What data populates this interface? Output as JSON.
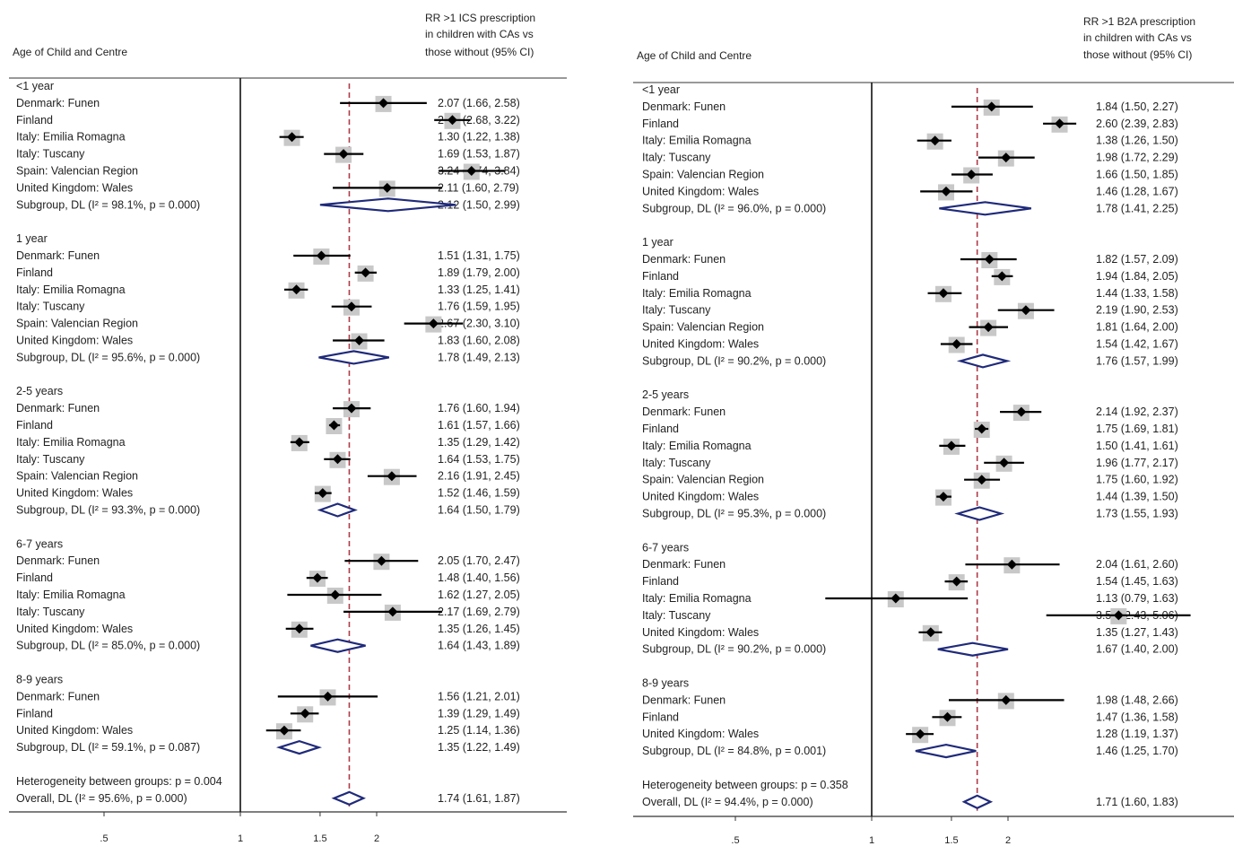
{
  "chart_data": [
    {
      "type": "forest",
      "header_left": "Age of Child and Centre",
      "header_right": [
        "RR >1 ICS prescription",
        "in children with CAs vs",
        "those without (95% CI)"
      ],
      "x_scale": "log",
      "x_ticks": [
        ".5",
        "1",
        "1.5",
        "2"
      ],
      "x_tick_values": [
        0.5,
        1,
        1.5,
        2
      ],
      "reference_line": 1.74,
      "groups": [
        {
          "label": "<1 year",
          "rows": [
            {
              "label": "Denmark: Funen",
              "est": 2.07,
              "lo": 1.66,
              "hi": 2.58,
              "text": "2.07 (1.66, 2.58)"
            },
            {
              "label": "Finland",
              "est": 2.94,
              "lo": 2.68,
              "hi": 3.22,
              "text": "2.94 (2.68, 3.22)"
            },
            {
              "label": "Italy: Emilia Romagna",
              "est": 1.3,
              "lo": 1.22,
              "hi": 1.38,
              "text": "1.30 (1.22, 1.38)"
            },
            {
              "label": "Italy: Tuscany",
              "est": 1.69,
              "lo": 1.53,
              "hi": 1.87,
              "text": "1.69 (1.53, 1.87)"
            },
            {
              "label": "Spain: Valencian Region",
              "est": 3.24,
              "lo": 2.74,
              "hi": 3.84,
              "text": "3.24 (2.74, 3.84)"
            },
            {
              "label": "United Kingdom: Wales",
              "est": 2.11,
              "lo": 1.6,
              "hi": 2.79,
              "text": "2.11 (1.60, 2.79)"
            }
          ],
          "subgroup": {
            "label": "Subgroup, DL (I² = 98.1%, p = 0.000)",
            "est": 2.12,
            "lo": 1.5,
            "hi": 2.99,
            "text": "2.12 (1.50, 2.99)"
          }
        },
        {
          "label": "1 year",
          "rows": [
            {
              "label": "Denmark: Funen",
              "est": 1.51,
              "lo": 1.31,
              "hi": 1.75,
              "text": "1.51 (1.31, 1.75)"
            },
            {
              "label": "Finland",
              "est": 1.89,
              "lo": 1.79,
              "hi": 2.0,
              "text": "1.89 (1.79, 2.00)"
            },
            {
              "label": "Italy: Emilia Romagna",
              "est": 1.33,
              "lo": 1.25,
              "hi": 1.41,
              "text": "1.33 (1.25, 1.41)"
            },
            {
              "label": "Italy: Tuscany",
              "est": 1.76,
              "lo": 1.59,
              "hi": 1.95,
              "text": "1.76 (1.59, 1.95)"
            },
            {
              "label": "Spain: Valencian Region",
              "est": 2.67,
              "lo": 2.3,
              "hi": 3.1,
              "text": "2.67 (2.30, 3.10)"
            },
            {
              "label": "United Kingdom: Wales",
              "est": 1.83,
              "lo": 1.6,
              "hi": 2.08,
              "text": "1.83 (1.60, 2.08)"
            }
          ],
          "subgroup": {
            "label": "Subgroup, DL (I² = 95.6%, p = 0.000)",
            "est": 1.78,
            "lo": 1.49,
            "hi": 2.13,
            "text": "1.78 (1.49, 2.13)"
          }
        },
        {
          "label": "2-5 years",
          "rows": [
            {
              "label": "Denmark: Funen",
              "est": 1.76,
              "lo": 1.6,
              "hi": 1.94,
              "text": "1.76 (1.60, 1.94)"
            },
            {
              "label": "Finland",
              "est": 1.61,
              "lo": 1.57,
              "hi": 1.66,
              "text": "1.61 (1.57, 1.66)"
            },
            {
              "label": "Italy: Emilia Romagna",
              "est": 1.35,
              "lo": 1.29,
              "hi": 1.42,
              "text": "1.35 (1.29, 1.42)"
            },
            {
              "label": "Italy: Tuscany",
              "est": 1.64,
              "lo": 1.53,
              "hi": 1.75,
              "text": "1.64 (1.53, 1.75)"
            },
            {
              "label": "Spain: Valencian Region",
              "est": 2.16,
              "lo": 1.91,
              "hi": 2.45,
              "text": "2.16 (1.91, 2.45)"
            },
            {
              "label": "United Kingdom: Wales",
              "est": 1.52,
              "lo": 1.46,
              "hi": 1.59,
              "text": "1.52 (1.46, 1.59)"
            }
          ],
          "subgroup": {
            "label": "Subgroup, DL (I² = 93.3%, p = 0.000)",
            "est": 1.64,
            "lo": 1.5,
            "hi": 1.79,
            "text": "1.64 (1.50, 1.79)"
          }
        },
        {
          "label": "6-7 years",
          "rows": [
            {
              "label": "Denmark: Funen",
              "est": 2.05,
              "lo": 1.7,
              "hi": 2.47,
              "text": "2.05 (1.70, 2.47)"
            },
            {
              "label": "Finland",
              "est": 1.48,
              "lo": 1.4,
              "hi": 1.56,
              "text": "1.48 (1.40, 1.56)"
            },
            {
              "label": "Italy: Emilia Romagna",
              "est": 1.62,
              "lo": 1.27,
              "hi": 2.05,
              "text": "1.62 (1.27, 2.05)"
            },
            {
              "label": "Italy: Tuscany",
              "est": 2.17,
              "lo": 1.69,
              "hi": 2.79,
              "text": "2.17 (1.69, 2.79)"
            },
            {
              "label": "United Kingdom: Wales",
              "est": 1.35,
              "lo": 1.26,
              "hi": 1.45,
              "text": "1.35 (1.26, 1.45)"
            }
          ],
          "subgroup": {
            "label": "Subgroup, DL (I² = 85.0%, p = 0.000)",
            "est": 1.64,
            "lo": 1.43,
            "hi": 1.89,
            "text": "1.64 (1.43, 1.89)"
          }
        },
        {
          "label": "8-9 years",
          "rows": [
            {
              "label": "Denmark: Funen",
              "est": 1.56,
              "lo": 1.21,
              "hi": 2.01,
              "text": "1.56 (1.21, 2.01)"
            },
            {
              "label": "Finland",
              "est": 1.39,
              "lo": 1.29,
              "hi": 1.49,
              "text": "1.39 (1.29, 1.49)"
            },
            {
              "label": "United Kingdom: Wales",
              "est": 1.25,
              "lo": 1.14,
              "hi": 1.36,
              "text": "1.25 (1.14, 1.36)"
            }
          ],
          "subgroup": {
            "label": "Subgroup, DL (I² = 59.1%, p = 0.087)",
            "est": 1.35,
            "lo": 1.22,
            "hi": 1.49,
            "text": "1.35 (1.22, 1.49)"
          }
        }
      ],
      "heterogeneity": "Heterogeneity between groups: p = 0.004",
      "overall": {
        "label": "Overall, DL (I² = 95.6%, p = 0.000)",
        "est": 1.74,
        "lo": 1.61,
        "hi": 1.87,
        "text": "1.74 (1.61, 1.87)"
      }
    },
    {
      "type": "forest",
      "header_left": "Age of Child and Centre",
      "header_right": [
        "RR >1 B2A prescription",
        "in children with CAs vs",
        "those without (95% CI)"
      ],
      "x_scale": "log",
      "x_ticks": [
        ".5",
        "1",
        "1.5",
        "2"
      ],
      "x_tick_values": [
        0.5,
        1,
        1.5,
        2
      ],
      "reference_line": 1.71,
      "groups": [
        {
          "label": "<1 year",
          "rows": [
            {
              "label": "Denmark: Funen",
              "est": 1.84,
              "lo": 1.5,
              "hi": 2.27,
              "text": "1.84 (1.50, 2.27)"
            },
            {
              "label": "Finland",
              "est": 2.6,
              "lo": 2.39,
              "hi": 2.83,
              "text": "2.60 (2.39, 2.83)"
            },
            {
              "label": "Italy: Emilia Romagna",
              "est": 1.38,
              "lo": 1.26,
              "hi": 1.5,
              "text": "1.38 (1.26, 1.50)"
            },
            {
              "label": "Italy: Tuscany",
              "est": 1.98,
              "lo": 1.72,
              "hi": 2.29,
              "text": "1.98 (1.72, 2.29)"
            },
            {
              "label": "Spain: Valencian Region",
              "est": 1.66,
              "lo": 1.5,
              "hi": 1.85,
              "text": "1.66 (1.50, 1.85)"
            },
            {
              "label": "United Kingdom: Wales",
              "est": 1.46,
              "lo": 1.28,
              "hi": 1.67,
              "text": "1.46 (1.28, 1.67)"
            }
          ],
          "subgroup": {
            "label": "Subgroup, DL (I² = 96.0%, p = 0.000)",
            "est": 1.78,
            "lo": 1.41,
            "hi": 2.25,
            "text": "1.78 (1.41, 2.25)"
          }
        },
        {
          "label": "1 year",
          "rows": [
            {
              "label": "Denmark: Funen",
              "est": 1.82,
              "lo": 1.57,
              "hi": 2.09,
              "text": "1.82 (1.57, 2.09)"
            },
            {
              "label": "Finland",
              "est": 1.94,
              "lo": 1.84,
              "hi": 2.05,
              "text": "1.94 (1.84, 2.05)"
            },
            {
              "label": "Italy: Emilia Romagna",
              "est": 1.44,
              "lo": 1.33,
              "hi": 1.58,
              "text": "1.44 (1.33, 1.58)"
            },
            {
              "label": "Italy: Tuscany",
              "est": 2.19,
              "lo": 1.9,
              "hi": 2.53,
              "text": "2.19 (1.90, 2.53)"
            },
            {
              "label": "Spain: Valencian Region",
              "est": 1.81,
              "lo": 1.64,
              "hi": 2.0,
              "text": "1.81 (1.64, 2.00)"
            },
            {
              "label": "United Kingdom: Wales",
              "est": 1.54,
              "lo": 1.42,
              "hi": 1.67,
              "text": "1.54 (1.42, 1.67)"
            }
          ],
          "subgroup": {
            "label": "Subgroup, DL (I² = 90.2%, p = 0.000)",
            "est": 1.76,
            "lo": 1.57,
            "hi": 1.99,
            "text": "1.76 (1.57, 1.99)"
          }
        },
        {
          "label": "2-5 years",
          "rows": [
            {
              "label": "Denmark: Funen",
              "est": 2.14,
              "lo": 1.92,
              "hi": 2.37,
              "text": "2.14 (1.92, 2.37)"
            },
            {
              "label": "Finland",
              "est": 1.75,
              "lo": 1.69,
              "hi": 1.81,
              "text": "1.75 (1.69, 1.81)"
            },
            {
              "label": "Italy: Emilia Romagna",
              "est": 1.5,
              "lo": 1.41,
              "hi": 1.61,
              "text": "1.50 (1.41, 1.61)"
            },
            {
              "label": "Italy: Tuscany",
              "est": 1.96,
              "lo": 1.77,
              "hi": 2.17,
              "text": "1.96 (1.77, 2.17)"
            },
            {
              "label": "Spain: Valencian Region",
              "est": 1.75,
              "lo": 1.6,
              "hi": 1.92,
              "text": "1.75 (1.60, 1.92)"
            },
            {
              "label": "United Kingdom: Wales",
              "est": 1.44,
              "lo": 1.39,
              "hi": 1.5,
              "text": "1.44 (1.39, 1.50)"
            }
          ],
          "subgroup": {
            "label": "Subgroup, DL (I² = 95.3%, p = 0.000)",
            "est": 1.73,
            "lo": 1.55,
            "hi": 1.93,
            "text": "1.73 (1.55, 1.93)"
          }
        },
        {
          "label": "6-7 years",
          "rows": [
            {
              "label": "Denmark: Funen",
              "est": 2.04,
              "lo": 1.61,
              "hi": 2.6,
              "text": "2.04 (1.61, 2.60)"
            },
            {
              "label": "Finland",
              "est": 1.54,
              "lo": 1.45,
              "hi": 1.63,
              "text": "1.54 (1.45, 1.63)"
            },
            {
              "label": "Italy: Emilia Romagna",
              "est": 1.13,
              "lo": 0.79,
              "hi": 1.63,
              "text": "1.13 (0.79, 1.63)"
            },
            {
              "label": "Italy: Tuscany",
              "est": 3.51,
              "lo": 2.43,
              "hi": 5.06,
              "text": "3.51 (2.43, 5.06)"
            },
            {
              "label": "United Kingdom: Wales",
              "est": 1.35,
              "lo": 1.27,
              "hi": 1.43,
              "text": "1.35 (1.27, 1.43)"
            }
          ],
          "subgroup": {
            "label": "Subgroup, DL (I² = 90.2%, p = 0.000)",
            "est": 1.67,
            "lo": 1.4,
            "hi": 2.0,
            "text": "1.67 (1.40, 2.00)"
          }
        },
        {
          "label": "8-9 years",
          "rows": [
            {
              "label": "Denmark: Funen",
              "est": 1.98,
              "lo": 1.48,
              "hi": 2.66,
              "text": "1.98 (1.48, 2.66)"
            },
            {
              "label": "Finland",
              "est": 1.47,
              "lo": 1.36,
              "hi": 1.58,
              "text": "1.47 (1.36, 1.58)"
            },
            {
              "label": "United Kingdom: Wales",
              "est": 1.28,
              "lo": 1.19,
              "hi": 1.37,
              "text": "1.28 (1.19, 1.37)"
            }
          ],
          "subgroup": {
            "label": "Subgroup, DL (I² = 84.8%, p = 0.001)",
            "est": 1.46,
            "lo": 1.25,
            "hi": 1.7,
            "text": "1.46 (1.25, 1.70)"
          }
        }
      ],
      "heterogeneity": "Heterogeneity between groups: p = 0.358",
      "overall": {
        "label": "Overall, DL (I² = 94.4%, p = 0.000)",
        "est": 1.71,
        "lo": 1.6,
        "hi": 1.83,
        "text": "1.71 (1.60, 1.83)"
      }
    }
  ],
  "colors": {
    "diamond": "#1f2a7a",
    "reference_line": "#b03a48",
    "weight_box": "#c8c8c8",
    "point": "#000000",
    "ci_line": "#000000"
  }
}
